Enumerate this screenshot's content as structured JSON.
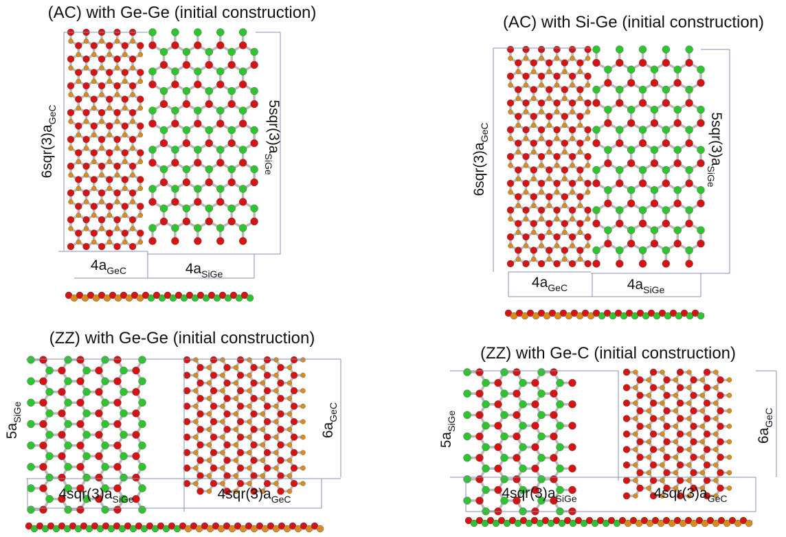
{
  "panels": [
    {
      "title": "(AC) with Ge-Ge (initial construction)",
      "left_label": {
        "main": "6sqr(3)a",
        "sub": "GeC"
      },
      "right_label": {
        "main": "5sqr(3)a",
        "sub": "SiGe"
      },
      "bottom_labels": [
        {
          "main": "4a",
          "sub": "GeC"
        },
        {
          "main": "4a",
          "sub": "SiGe"
        }
      ]
    },
    {
      "title": "(AC) with Si-Ge (initial construction)",
      "left_label": {
        "main": "6sqr(3)a",
        "sub": "GeC"
      },
      "right_label": {
        "main": "5sqr(3)a",
        "sub": "SiGe"
      },
      "bottom_labels": [
        {
          "main": "4a",
          "sub": "GeC"
        },
        {
          "main": "4a",
          "sub": "SiGe"
        }
      ]
    },
    {
      "title": "(ZZ) with Ge-Ge (initial construction)",
      "left_label": {
        "main": "5a",
        "sub": "SiGe"
      },
      "right_label": {
        "main": "6a",
        "sub": "GeC"
      },
      "bottom_labels": [
        {
          "main": "4sqr(3)a",
          "sub": "SiGe"
        },
        {
          "main": "4sqr(3)a",
          "sub": "GeC"
        }
      ]
    },
    {
      "title": "(ZZ) with Ge-C (initial construction)",
      "left_label": {
        "main": "5a",
        "sub": "SiGe"
      },
      "right_label": {
        "main": "6a",
        "sub": "GeC"
      },
      "bottom_labels": [
        {
          "main": "4sqr(3)a",
          "sub": "SiGe"
        },
        {
          "main": "4sqr(3)a",
          "sub": "GeC"
        }
      ]
    }
  ]
}
